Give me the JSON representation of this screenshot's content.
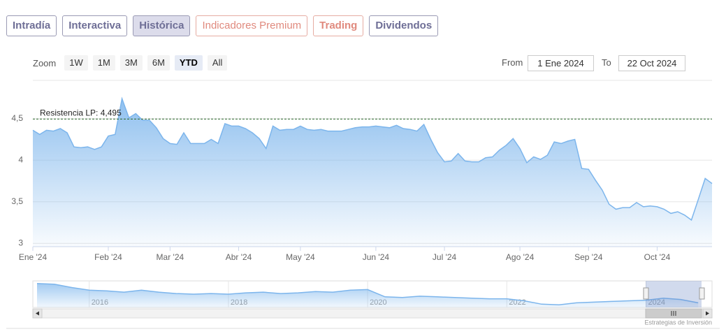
{
  "tabs": [
    "Intradía",
    "Interactiva",
    "Histórica",
    "Indicadores Premium",
    "Trading",
    "Dividendos"
  ],
  "zoom": {
    "label": "Zoom",
    "buttons": [
      "1W",
      "1M",
      "3M",
      "6M",
      "YTD",
      "All"
    ]
  },
  "range": {
    "from_label": "From",
    "from": "1 Ene 2024",
    "to_label": "To",
    "to": "22 Oct 2024"
  },
  "chart_data": {
    "type": "area",
    "categories": [
      "Ene '24",
      null,
      null,
      null,
      null,
      null,
      null,
      null,
      null,
      null,
      null,
      "Feb '24",
      null,
      null,
      null,
      null,
      null,
      null,
      null,
      null,
      "Mar '24",
      null,
      null,
      null,
      null,
      null,
      null,
      null,
      null,
      null,
      "Abr '24",
      null,
      null,
      null,
      null,
      null,
      null,
      null,
      null,
      "May '24",
      null,
      null,
      null,
      null,
      null,
      null,
      null,
      null,
      null,
      null,
      "Jun '24",
      null,
      null,
      null,
      null,
      null,
      null,
      null,
      null,
      null,
      "Jul '24",
      null,
      null,
      null,
      null,
      null,
      null,
      null,
      null,
      null,
      null,
      "Ago '24",
      null,
      null,
      null,
      null,
      null,
      null,
      null,
      null,
      null,
      "Sep '24",
      null,
      null,
      null,
      null,
      null,
      null,
      null,
      null,
      null,
      "Oct '24",
      null,
      null,
      null,
      null,
      null,
      null,
      null,
      null
    ],
    "values": [
      4.36,
      4.31,
      4.36,
      4.35,
      4.38,
      4.33,
      4.16,
      4.15,
      4.16,
      4.13,
      4.16,
      4.29,
      4.31,
      4.74,
      4.51,
      4.56,
      4.48,
      4.48,
      4.39,
      4.26,
      4.2,
      4.19,
      4.33,
      4.2,
      4.2,
      4.2,
      4.25,
      4.2,
      4.44,
      4.41,
      4.41,
      4.38,
      4.33,
      4.26,
      4.14,
      4.41,
      4.36,
      4.37,
      4.37,
      4.41,
      4.37,
      4.36,
      4.37,
      4.35,
      4.35,
      4.35,
      4.37,
      4.39,
      4.4,
      4.4,
      4.41,
      4.4,
      4.39,
      4.42,
      4.38,
      4.37,
      4.35,
      4.43,
      4.25,
      4.09,
      3.98,
      3.99,
      4.08,
      3.99,
      3.98,
      3.98,
      4.03,
      4.04,
      4.12,
      4.18,
      4.26,
      4.14,
      3.97,
      4.04,
      4.01,
      4.06,
      4.22,
      4.2,
      4.23,
      4.25,
      3.9,
      3.89,
      3.76,
      3.64,
      3.47,
      3.41,
      3.43,
      3.43,
      3.49,
      3.44,
      3.45,
      3.44,
      3.41,
      3.36,
      3.38,
      3.34,
      3.28,
      3.53,
      3.78,
      3.72
    ],
    "color": "#7cb5ec",
    "ylim": [
      2.96,
      4.96
    ],
    "yticks": [
      3,
      {
        "value": 3.5,
        "label": "3,5"
      },
      4,
      {
        "value": 4.5,
        "label": "4,5"
      }
    ],
    "grid": true,
    "annotation": {
      "value": 4.495,
      "label": "Resistencia LP: 4,495"
    }
  },
  "navigator": {
    "type": "area",
    "categories": [
      null,
      null,
      null,
      "2016",
      null,
      null,
      null,
      null,
      null,
      null,
      null,
      "2018",
      null,
      null,
      null,
      null,
      null,
      null,
      null,
      "2020",
      null,
      null,
      null,
      null,
      null,
      null,
      null,
      "2022",
      null,
      null,
      null,
      null,
      null,
      null,
      null,
      "2024",
      null,
      null,
      null
    ],
    "values": [
      6.6,
      6.5,
      6.0,
      5.6,
      5.5,
      5.3,
      5.6,
      5.3,
      5.1,
      5.0,
      5.1,
      5.0,
      5.2,
      5.3,
      5.1,
      5.2,
      5.4,
      5.3,
      5.6,
      5.7,
      4.6,
      4.5,
      4.7,
      4.6,
      4.5,
      4.4,
      4.3,
      4.3,
      4.0,
      3.5,
      3.4,
      3.7,
      3.8,
      3.9,
      4.0,
      4.1,
      4.4,
      4.2,
      3.7
    ],
    "ylim": [
      3,
      7
    ]
  },
  "credit": "Estrategias de Inversión"
}
